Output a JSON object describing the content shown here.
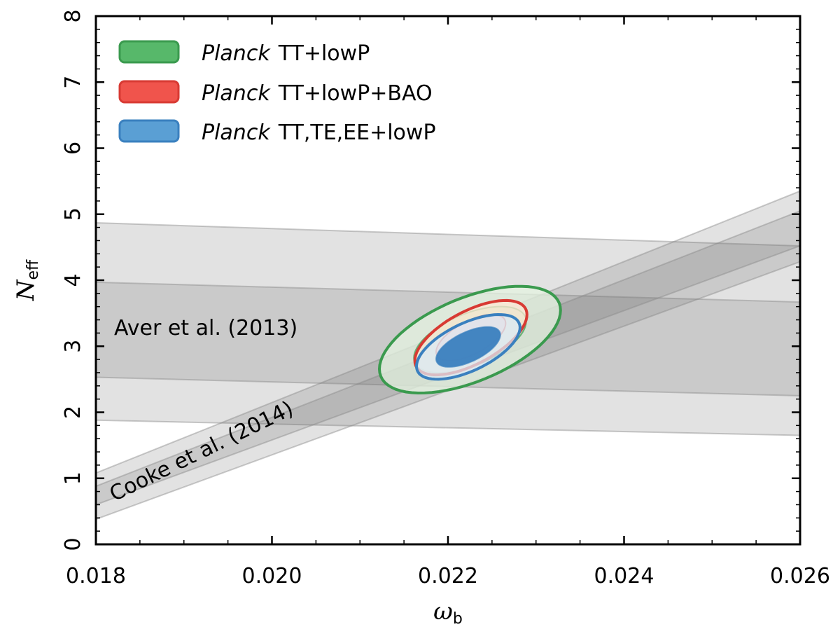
{
  "chart_data": {
    "type": "contour",
    "x_label": "ω",
    "x_label_sub": "b",
    "y_label": "N",
    "y_label_sub": "eff",
    "xlim": [
      0.018,
      0.026
    ],
    "ylim": [
      0,
      8
    ],
    "x_ticks": [
      0.018,
      0.02,
      0.022,
      0.024,
      0.026
    ],
    "x_tick_labels": [
      "0.018",
      "0.020",
      "0.022",
      "0.024",
      "0.026"
    ],
    "y_ticks": [
      0,
      1,
      2,
      3,
      4,
      5,
      6,
      7,
      8
    ],
    "y_tick_labels": [
      "0",
      "1",
      "2",
      "3",
      "4",
      "5",
      "6",
      "7",
      "8"
    ],
    "legend": {
      "location": "top-left",
      "entries": [
        {
          "italic": "Planck",
          "text": "TT+lowP",
          "fill": "#57b86a",
          "edge": "#3a9a4e"
        },
        {
          "italic": "Planck",
          "text": "TT+lowP+BAO",
          "fill": "#f0544c",
          "edge": "#d83a33"
        },
        {
          "italic": "Planck",
          "text": "TT,TE,EE+lowP",
          "fill": "#5a9fd4",
          "edge": "#3a80bf"
        }
      ]
    },
    "series": [
      {
        "name": "Planck TT+lowP",
        "color": "#3a9a4e",
        "fill_outer": "#e4f3e0",
        "fill_inner": "#bde3bf",
        "center": [
          0.02225,
          3.1
        ],
        "sigma": [
          0.00042,
          0.33
        ],
        "corr": 0.55
      },
      {
        "name": "Planck TT+lowP+BAO",
        "color": "#d83a33",
        "fill_outer": "#fde7d3",
        "fill_inner": "#f7c7c6",
        "center": [
          0.02226,
          3.13
        ],
        "sigma": [
          0.00026,
          0.23
        ],
        "corr": 0.62
      },
      {
        "name": "Planck TT,TE,EE+lowP",
        "color": "#3a80bf",
        "fill_outer": "#dbe9f6",
        "fill_inner": "#3a80bf",
        "center": [
          0.02223,
          2.99
        ],
        "sigma": [
          0.00024,
          0.2
        ],
        "corr": 0.6
      }
    ],
    "bands": [
      {
        "name": "Aver et al. (2013)",
        "outer": {
          "x": [
            0.018,
            0.026
          ],
          "y_low": [
            1.88,
            1.65
          ],
          "y_high": [
            4.87,
            4.52
          ]
        },
        "inner": {
          "x": [
            0.018,
            0.026
          ],
          "y_low": [
            2.53,
            2.25
          ],
          "y_high": [
            3.97,
            3.67
          ]
        }
      },
      {
        "name": "Cooke et al. (2014)",
        "outer": {
          "x": [
            0.018,
            0.026
          ],
          "y_low": [
            0.38,
            4.28
          ],
          "y_high": [
            1.08,
            5.35
          ]
        },
        "inner": {
          "x": [
            0.018,
            0.026
          ],
          "y_low": [
            0.6,
            4.52
          ],
          "y_high": [
            0.88,
            5.05
          ]
        }
      }
    ],
    "annotations": [
      {
        "text": "Aver et al. (2013)",
        "x": 0.0183,
        "y": 3.25,
        "rotation": 0
      },
      {
        "text": "Cooke et al. (2014)",
        "x": 0.01818,
        "y": 0.62,
        "rotation": -26
      }
    ]
  }
}
